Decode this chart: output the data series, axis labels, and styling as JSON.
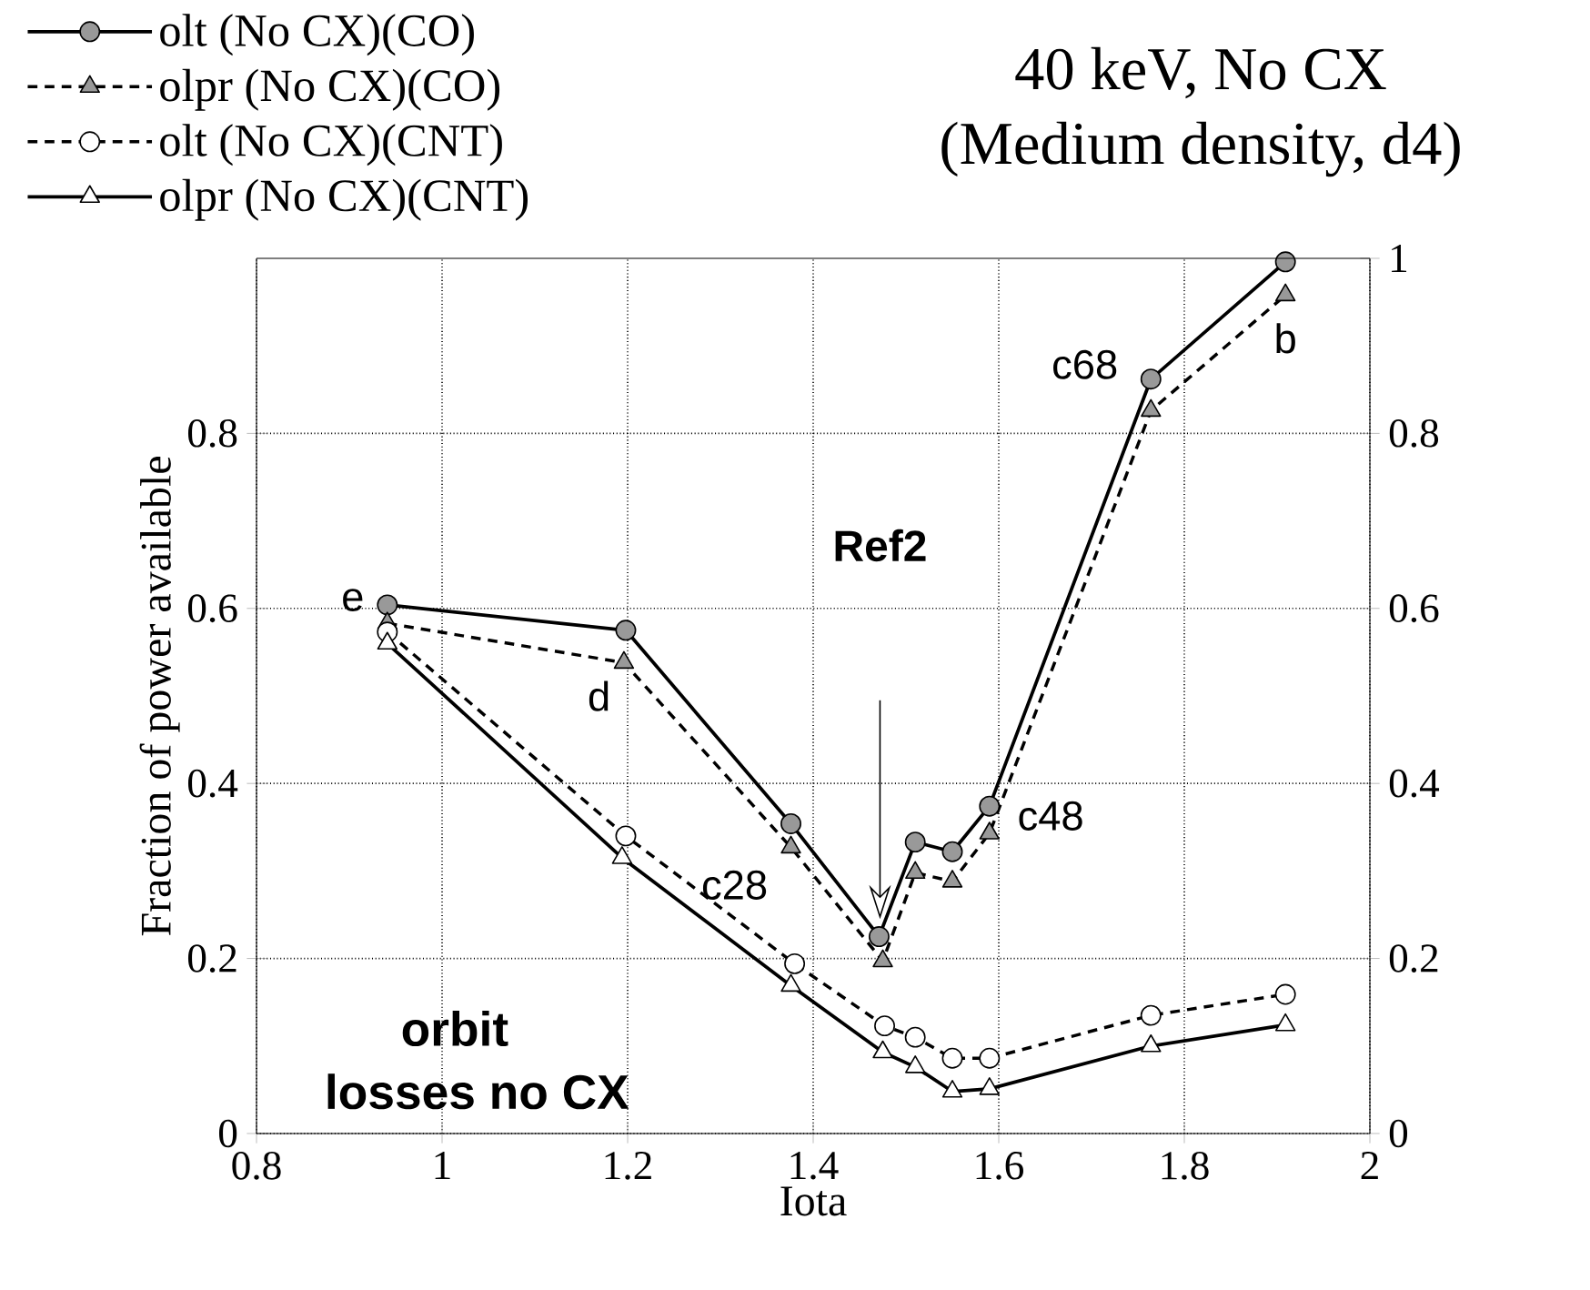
{
  "chart_data": {
    "type": "line",
    "title": "40 keV, No CX",
    "subtitle": "(Medium density, d4)",
    "xlabel": "Iota",
    "ylabel": "Fraction of power available",
    "xlim": [
      0.8,
      2
    ],
    "xticks": [
      0.8,
      1,
      1.2,
      1.4,
      1.6,
      1.8,
      2
    ],
    "ylim": [
      0,
      1
    ],
    "yticks": [
      0,
      0.2,
      0.4,
      0.6,
      0.8
    ],
    "y2lim": [
      0,
      1
    ],
    "y2ticks": [
      0,
      0.2,
      0.4,
      0.6,
      0.8,
      1
    ],
    "grid": true,
    "legend": "top left",
    "series": [
      {
        "name": "olt (No CX)(CO)",
        "color": "#000000",
        "marker": "circle",
        "line_style": "solid",
        "x": [
          0.941,
          1.198,
          1.376,
          1.471,
          1.51,
          1.55,
          1.59,
          1.764,
          1.909
        ],
        "values": [
          0.604,
          0.575,
          0.354,
          0.225,
          0.333,
          0.322,
          0.374,
          0.862,
          0.996
        ]
      },
      {
        "name": "olpr (No CX)(CO)",
        "color": "#000000",
        "marker": "triangle",
        "line_style": "dashed",
        "x": [
          0.941,
          1.196,
          1.376,
          1.475,
          1.51,
          1.55,
          1.59,
          1.764,
          1.909
        ],
        "values": [
          0.583,
          0.538,
          0.327,
          0.197,
          0.298,
          0.288,
          0.343,
          0.826,
          0.958
        ]
      },
      {
        "name": "olt (No CX)(CNT)",
        "color": "#000000",
        "marker": "circle",
        "line_style": "dashed",
        "x": [
          0.941,
          1.198,
          1.38,
          1.477,
          1.51,
          1.55,
          1.59,
          1.764,
          1.909
        ],
        "values": [
          0.573,
          0.34,
          0.194,
          0.123,
          0.11,
          0.086,
          0.086,
          0.135,
          0.159
        ]
      },
      {
        "name": "olpr (No CX)(CNT)",
        "color": "#000000",
        "marker": "triangle",
        "line_style": "solid",
        "x": [
          0.941,
          1.194,
          1.376,
          1.475,
          1.51,
          1.55,
          1.59,
          1.764,
          1.909
        ],
        "values": [
          0.56,
          0.315,
          0.169,
          0.093,
          0.076,
          0.048,
          0.051,
          0.1,
          0.124
        ]
      }
    ],
    "annotations": [
      {
        "text": "e",
        "x": 0.941,
        "y": 0.604
      },
      {
        "text": "d",
        "x": 1.196,
        "y": 0.538
      },
      {
        "text": "c28",
        "x": 1.376,
        "y": 0.327
      },
      {
        "text": "c48",
        "x": 1.59,
        "y": 0.374
      },
      {
        "text": "c68",
        "x": 1.764,
        "y": 0.862
      },
      {
        "text": "b",
        "x": 1.909,
        "y": 0.958
      },
      "Ref2",
      "orbit",
      "losses no CX"
    ]
  }
}
